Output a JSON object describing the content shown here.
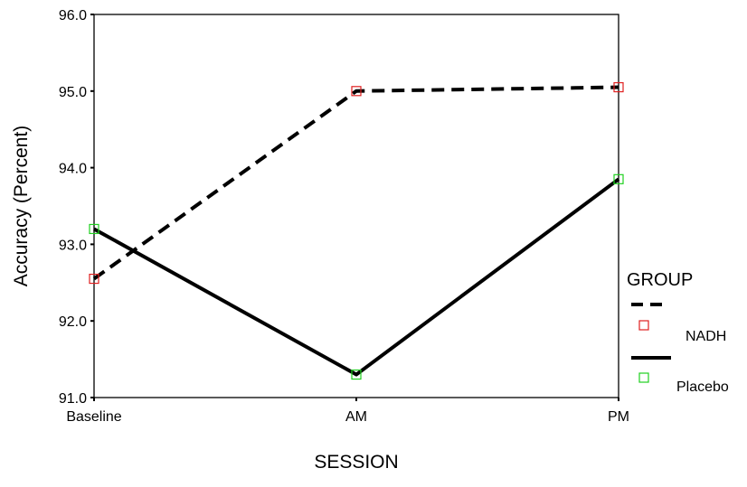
{
  "chart_data": {
    "type": "line",
    "categories": [
      "Baseline",
      "AM",
      "PM"
    ],
    "xlabel": "SESSION",
    "ylabel": "Accuracy (Percent)",
    "ylim": [
      91.0,
      96.0
    ],
    "yticks": [
      "91.0",
      "92.0",
      "93.0",
      "94.0",
      "95.0",
      "96.0"
    ],
    "grid": false,
    "legend": {
      "title": "GROUP",
      "placement": "right"
    },
    "series": [
      {
        "name": "NADH",
        "values": [
          92.55,
          95.0,
          95.05
        ],
        "line_style": "dashed",
        "line_color": "#000000",
        "marker": "square",
        "marker_color": "#e02020"
      },
      {
        "name": "Placebo",
        "values": [
          93.2,
          91.3,
          93.85
        ],
        "line_style": "solid",
        "line_color": "#000000",
        "marker": "square",
        "marker_color": "#20d020"
      }
    ]
  }
}
